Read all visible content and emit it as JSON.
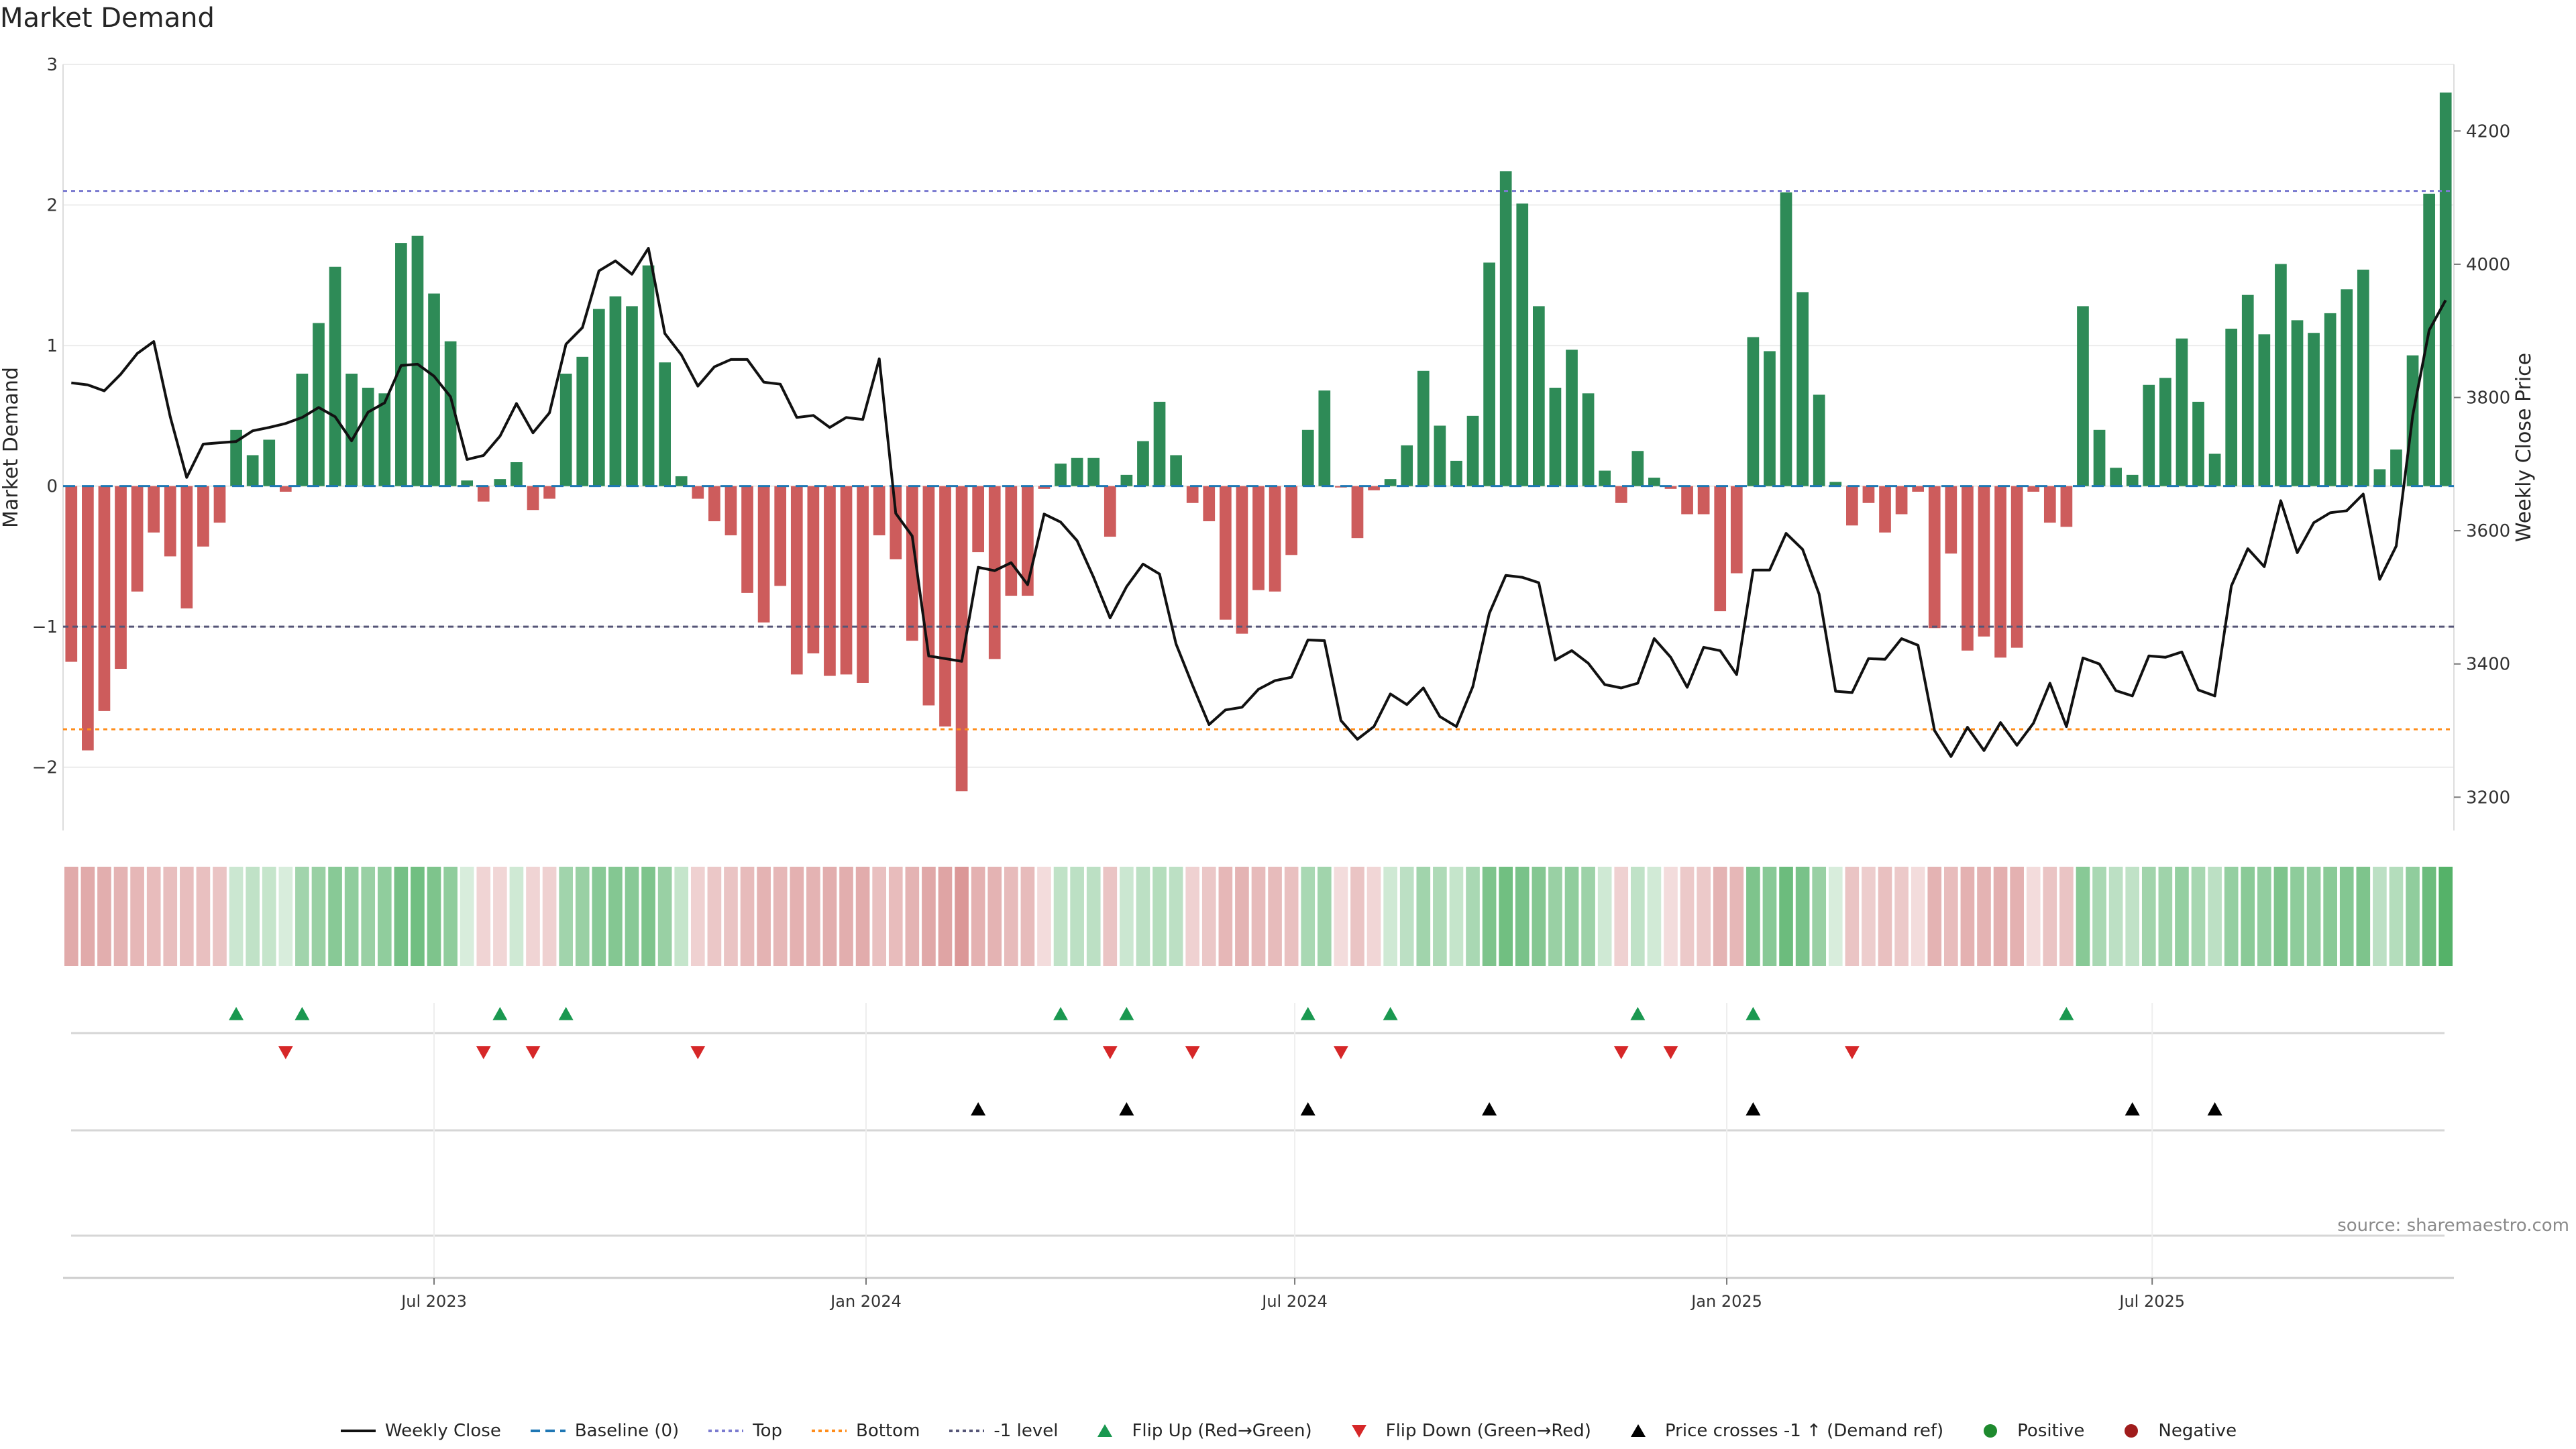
{
  "chart_data": {
    "type": "bar+line",
    "title": "Market Demand",
    "ylabel_left": "Market Demand",
    "ylabel_right": "Weekly Close Price",
    "ylim_left": [
      -2.45,
      3.0
    ],
    "yticks_left": [
      -2,
      -1,
      0,
      1,
      2,
      3
    ],
    "yticks_left_labels": [
      "−2",
      "−1",
      "0",
      "1",
      "2",
      "3"
    ],
    "ylim_right": [
      3150,
      4300
    ],
    "yticks_right": [
      3200,
      3400,
      3600,
      3800,
      4000,
      4200
    ],
    "x_tick_labels": [
      "Jul 2023",
      "Jan 2024",
      "Jul 2024",
      "Jan 2025",
      "Jul 2025"
    ],
    "x_tick_weeks": [
      22,
      48.2,
      74.2,
      100.4,
      126.2
    ],
    "levels": {
      "top": 2.1,
      "bottom": -1.73,
      "minus_one": -1.0,
      "baseline": 0
    },
    "demand": [
      -1.25,
      -1.88,
      -1.6,
      -1.3,
      -0.75,
      -0.33,
      -0.5,
      -0.87,
      -0.43,
      -0.26,
      0.4,
      0.22,
      0.33,
      -0.04,
      0.8,
      1.16,
      1.56,
      0.8,
      0.7,
      0.66,
      1.73,
      1.78,
      1.37,
      1.03,
      0.04,
      -0.11,
      0.05,
      0.17,
      -0.17,
      -0.09,
      0.8,
      0.92,
      1.26,
      1.35,
      1.28,
      1.57,
      0.88,
      0.07,
      -0.09,
      -0.25,
      -0.35,
      -0.76,
      -0.97,
      -0.71,
      -1.34,
      -1.19,
      -1.35,
      -1.34,
      -1.4,
      -0.35,
      -0.52,
      -1.1,
      -1.56,
      -1.71,
      -2.17,
      -0.47,
      -1.23,
      -0.78,
      -0.78,
      -0.02,
      0.16,
      0.2,
      0.2,
      -0.36,
      0.08,
      0.32,
      0.6,
      0.22,
      -0.12,
      -0.25,
      -0.95,
      -1.05,
      -0.74,
      -0.75,
      -0.49,
      0.4,
      0.68,
      -0.01,
      -0.37,
      -0.03,
      0.05,
      0.29,
      0.82,
      0.43,
      0.18,
      0.5,
      1.59,
      2.24,
      2.01,
      1.28,
      0.7,
      0.97,
      0.66,
      0.11,
      -0.12,
      0.25,
      0.06,
      -0.02,
      -0.2,
      -0.2,
      -0.89,
      -0.62,
      1.06,
      0.96,
      2.09,
      1.38,
      0.65,
      0.03,
      -0.28,
      -0.12,
      -0.33,
      -0.2,
      -0.04,
      -1.01,
      -0.48,
      -1.17,
      -1.07,
      -1.22,
      -1.15,
      -0.04,
      -0.26,
      -0.29,
      1.28,
      0.4,
      0.13,
      0.08,
      0.72,
      0.77,
      1.05,
      0.6,
      0.23,
      1.12,
      1.36,
      1.08,
      1.58,
      1.18,
      1.09,
      1.23,
      1.4,
      1.54,
      0.12,
      0.26,
      0.93,
      2.08,
      2.8
    ],
    "close": [
      3822,
      3819,
      3810,
      3835,
      3866,
      3884,
      3771,
      3680,
      3730,
      3732,
      3734,
      3750,
      3755,
      3761,
      3770,
      3785,
      3771,
      3735,
      3778,
      3792,
      3848,
      3850,
      3832,
      3801,
      3707,
      3713,
      3742,
      3791,
      3747,
      3777,
      3880,
      3905,
      3990,
      4005,
      3985,
      4024,
      3896,
      3864,
      3817,
      3846,
      3857,
      3857,
      3823,
      3820,
      3770,
      3773,
      3755,
      3770,
      3767,
      3858,
      3626,
      3592,
      3412,
      3408,
      3404,
      3545,
      3540,
      3552,
      3519,
      3625,
      3613,
      3585,
      3530,
      3469,
      3516,
      3550,
      3535,
      3430,
      3368,
      3309,
      3331,
      3335,
      3362,
      3375,
      3380,
      3436,
      3435,
      3315,
      3287,
      3306,
      3355,
      3339,
      3364,
      3321,
      3306,
      3366,
      3476,
      3533,
      3530,
      3522,
      3406,
      3420,
      3401,
      3369,
      3364,
      3371,
      3438,
      3410,
      3365,
      3425,
      3420,
      3384,
      3541,
      3541,
      3596,
      3572,
      3505,
      3359,
      3357,
      3408,
      3407,
      3438,
      3428,
      3300,
      3261,
      3305,
      3270,
      3312,
      3278,
      3311,
      3371,
      3306,
      3409,
      3400,
      3360,
      3352,
      3412,
      3410,
      3418,
      3361,
      3352,
      3517,
      3573,
      3546,
      3645,
      3567,
      3612,
      3627,
      3630,
      3655,
      3527,
      3577,
      3773,
      3901,
      3946
    ],
    "heat_level": [
      0.36,
      0.37,
      0.34,
      0.3,
      0.28,
      0.25,
      0.23,
      0.24,
      0.22,
      0.2,
      -0.12,
      -0.18,
      -0.15,
      -0.05,
      -0.35,
      -0.4,
      -0.5,
      -0.45,
      -0.4,
      -0.45,
      -0.6,
      -0.62,
      -0.55,
      -0.45,
      -0.05,
      0.1,
      0.08,
      -0.1,
      0.1,
      0.12,
      -0.35,
      -0.4,
      -0.5,
      -0.52,
      -0.5,
      -0.55,
      -0.4,
      -0.15,
      0.12,
      0.18,
      0.2,
      0.26,
      0.3,
      0.28,
      0.32,
      0.3,
      0.34,
      0.34,
      0.35,
      0.22,
      0.25,
      0.3,
      0.38,
      0.4,
      0.48,
      0.32,
      0.3,
      0.26,
      0.26,
      0.05,
      -0.18,
      -0.2,
      -0.2,
      0.2,
      -0.12,
      -0.2,
      -0.25,
      -0.2,
      0.12,
      0.18,
      0.28,
      0.3,
      0.26,
      0.26,
      0.22,
      -0.3,
      -0.35,
      0.05,
      0.2,
      0.08,
      -0.1,
      -0.2,
      -0.35,
      -0.28,
      -0.15,
      -0.3,
      -0.55,
      -0.62,
      -0.58,
      -0.52,
      -0.4,
      -0.45,
      -0.38,
      -0.1,
      0.12,
      -0.18,
      -0.08,
      0.05,
      0.16,
      0.16,
      0.3,
      0.28,
      -0.55,
      -0.5,
      -0.65,
      -0.58,
      -0.4,
      -0.05,
      0.2,
      0.14,
      0.22,
      0.16,
      0.05,
      0.3,
      0.25,
      0.32,
      0.3,
      0.33,
      0.32,
      0.05,
      0.2,
      0.2,
      -0.5,
      -0.3,
      -0.2,
      -0.18,
      -0.35,
      -0.36,
      -0.42,
      -0.32,
      -0.2,
      -0.42,
      -0.48,
      -0.44,
      -0.55,
      -0.46,
      -0.44,
      -0.48,
      -0.52,
      -0.55,
      -0.2,
      -0.25,
      -0.45,
      -0.65,
      -0.78
    ],
    "flip_up_weeks": [
      10,
      14,
      26,
      30,
      60,
      64,
      75,
      80,
      95,
      102,
      121
    ],
    "flip_down_weeks": [
      13,
      25,
      28,
      38,
      63,
      68,
      77,
      94,
      97,
      108
    ],
    "price_cross_weeks": [
      55,
      64,
      75,
      86,
      102,
      125,
      130
    ],
    "legend": [
      {
        "label": "Weekly Close",
        "kind": "line",
        "color": "#111111"
      },
      {
        "label": "Baseline (0)",
        "kind": "dash",
        "color": "#1f77b4"
      },
      {
        "label": "Top",
        "kind": "dot",
        "color": "#7b7bd0"
      },
      {
        "label": "Bottom",
        "kind": "dot",
        "color": "#ff8c1a"
      },
      {
        "label": "-1 level",
        "kind": "dot",
        "color": "#555577"
      },
      {
        "label": "Flip Up (Red→Green)",
        "kind": "tri-up",
        "color": "#1a9850"
      },
      {
        "label": "Flip Down (Green→Red)",
        "kind": "tri-down",
        "color": "#d62728"
      },
      {
        "label": "Price crosses -1 ↑ (Demand ref)",
        "kind": "tri-up",
        "color": "#000000"
      },
      {
        "label": "Positive",
        "kind": "circle",
        "color": "#1e8a2e"
      },
      {
        "label": "Negative",
        "kind": "circle",
        "color": "#a01c1c"
      }
    ]
  },
  "colors": {
    "positive": "#2e8b57",
    "negative": "#cd5c5c",
    "line": "#111111"
  },
  "source": "source: sharemaestro.com"
}
